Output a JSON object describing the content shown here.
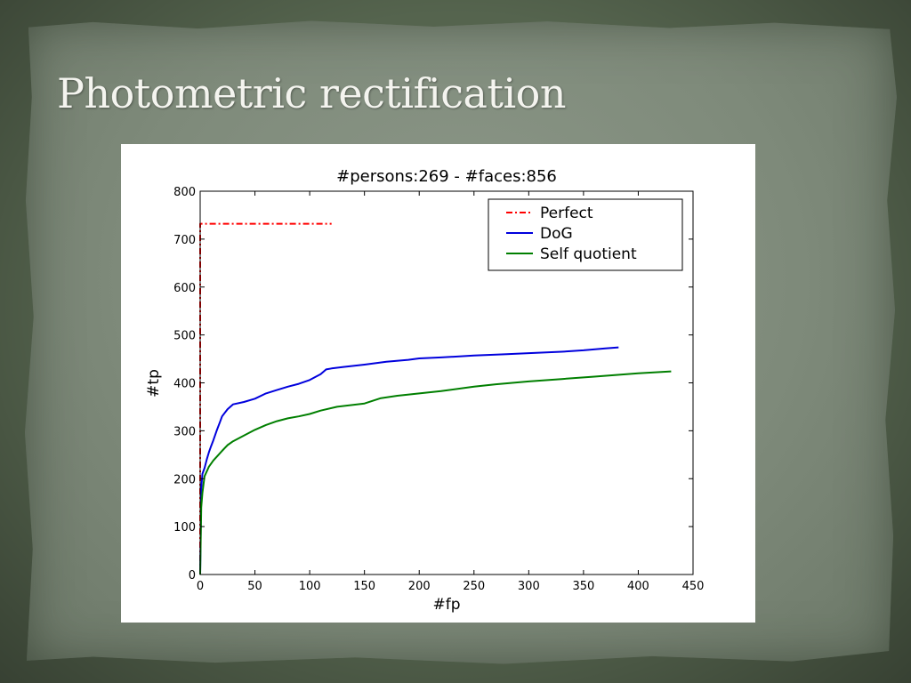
{
  "slide": {
    "title": "Photometric rectification"
  },
  "chart_data": {
    "type": "line",
    "title": "#persons:269 - #faces:856",
    "xlabel": "#fp",
    "ylabel": "#tp",
    "xlim": [
      0,
      450
    ],
    "ylim": [
      0,
      800
    ],
    "xticks": [
      0,
      50,
      100,
      150,
      200,
      250,
      300,
      350,
      400,
      450
    ],
    "yticks": [
      0,
      100,
      200,
      300,
      400,
      500,
      600,
      700,
      800
    ],
    "grid": false,
    "legend_position": "top-right",
    "series": [
      {
        "name": "Perfect",
        "color": "#ff0000",
        "style": "dash-dot",
        "x": [
          0,
          0,
          120
        ],
        "y": [
          0,
          732,
          732
        ]
      },
      {
        "name": "DoG",
        "color": "#0000dd",
        "style": "solid",
        "x": [
          0,
          1,
          2,
          4,
          6,
          8,
          10,
          12,
          15,
          18,
          20,
          25,
          30,
          40,
          50,
          60,
          70,
          80,
          90,
          100,
          110,
          115,
          120,
          130,
          150,
          170,
          190,
          200,
          220,
          250,
          280,
          300,
          330,
          350,
          370,
          382
        ],
        "y": [
          0,
          180,
          210,
          222,
          240,
          255,
          268,
          280,
          300,
          318,
          330,
          345,
          355,
          360,
          367,
          378,
          385,
          392,
          398,
          406,
          418,
          428,
          430,
          433,
          438,
          444,
          448,
          451,
          453,
          457,
          460,
          462,
          465,
          468,
          472,
          474
        ]
      },
      {
        "name": "Self quotient",
        "color": "#007f00",
        "style": "solid",
        "x": [
          0,
          1,
          2,
          4,
          8,
          12,
          16,
          20,
          25,
          30,
          40,
          50,
          60,
          70,
          80,
          90,
          100,
          110,
          125,
          150,
          165,
          180,
          200,
          220,
          250,
          270,
          300,
          330,
          360,
          400,
          430
        ],
        "y": [
          0,
          140,
          170,
          205,
          225,
          238,
          248,
          258,
          270,
          278,
          290,
          302,
          312,
          320,
          326,
          330,
          335,
          342,
          350,
          357,
          368,
          373,
          378,
          383,
          392,
          397,
          403,
          408,
          413,
          420,
          424
        ]
      }
    ]
  }
}
